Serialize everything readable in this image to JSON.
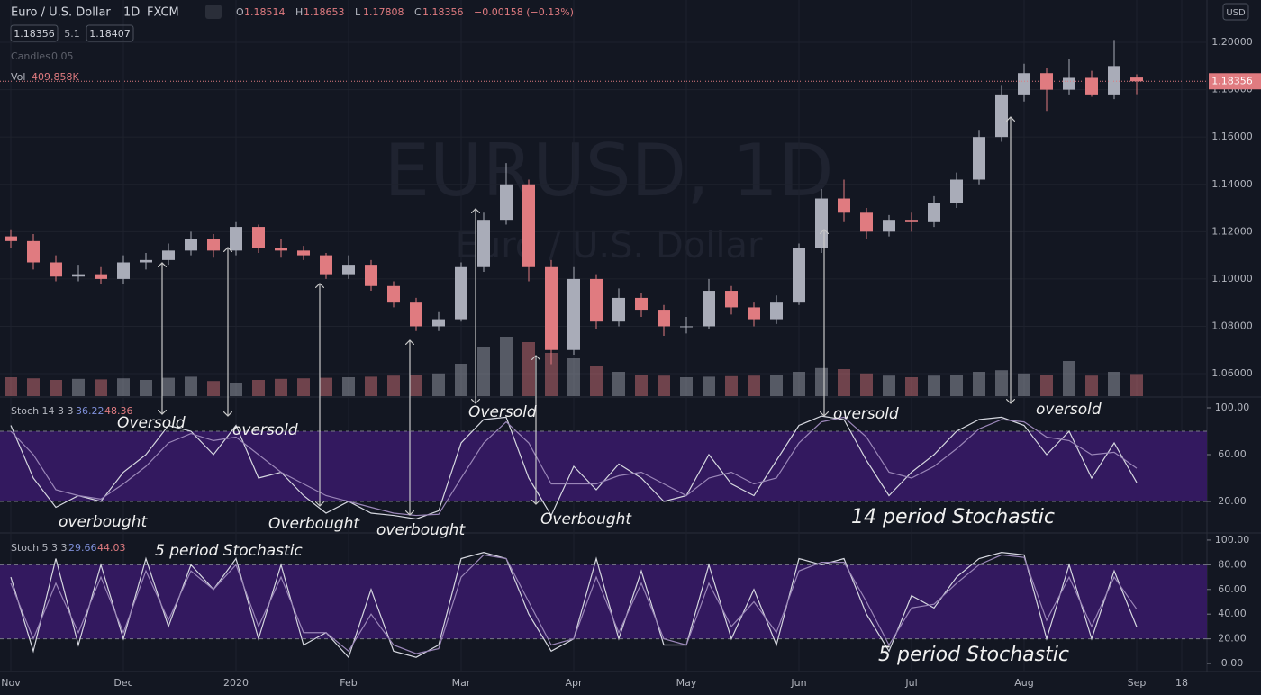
{
  "header": {
    "symbol": "Euro / U.S. Dollar",
    "interval": "1D",
    "exchange": "FXCM",
    "ohlc_letters": [
      "O",
      "H",
      "L",
      "C"
    ],
    "ohlc_values": [
      "1.18514",
      "1.18653",
      "1.17808",
      "1.18356"
    ],
    "change": "−0.00158 (−0.13%)",
    "bid": "1.18356",
    "spread": "5.1",
    "ask": "1.18407",
    "candles_label": "Candles",
    "candles_value": "0.05",
    "vol_label": "Vol",
    "vol_value": "409.858K",
    "currency": "USD"
  },
  "watermark": {
    "title": "EURUSD, 1D",
    "subtitle": "Euro / U.S. Dollar"
  },
  "chart_data": [
    {
      "type": "candlestick",
      "x": [
        "Nov",
        null,
        null,
        null,
        null,
        "Dec",
        null,
        null,
        null,
        null,
        "2020",
        null,
        null,
        null,
        null,
        "Feb",
        null,
        null,
        null,
        null,
        "Mar",
        null,
        null,
        null,
        null,
        "Apr",
        null,
        null,
        null,
        null,
        "May",
        null,
        null,
        null,
        null,
        "Jun",
        null,
        null,
        null,
        null,
        "Jul",
        null,
        null,
        null,
        null,
        "Aug",
        null,
        null,
        null,
        null,
        "Sep",
        null,
        "18"
      ],
      "open": [
        1.118,
        1.116,
        1.107,
        1.101,
        1.102,
        1.1,
        1.107,
        1.108,
        1.112,
        1.117,
        1.112,
        1.122,
        1.113,
        1.112,
        1.11,
        1.102,
        1.106,
        1.097,
        1.09,
        1.08,
        1.083,
        1.105,
        1.125,
        1.14,
        1.105,
        1.07,
        1.1,
        1.082,
        1.092,
        1.087,
        1.08,
        1.08,
        1.095,
        1.088,
        1.083,
        1.09,
        1.113,
        1.134,
        1.128,
        1.12,
        1.125,
        1.124,
        1.132,
        1.142,
        1.16,
        1.178,
        1.187,
        1.18,
        1.185,
        1.178,
        1.18514,
        null,
        null
      ],
      "high": [
        1.121,
        1.119,
        1.11,
        1.106,
        1.105,
        1.11,
        1.111,
        1.115,
        1.12,
        1.119,
        1.124,
        1.123,
        1.117,
        1.114,
        1.111,
        1.11,
        1.108,
        1.099,
        1.092,
        1.086,
        1.107,
        1.128,
        1.149,
        1.142,
        1.108,
        1.105,
        1.102,
        1.096,
        1.094,
        1.089,
        1.084,
        1.1,
        1.097,
        1.09,
        1.093,
        1.115,
        1.138,
        1.142,
        1.13,
        1.127,
        1.128,
        1.135,
        1.145,
        1.163,
        1.182,
        1.191,
        1.189,
        1.193,
        1.188,
        1.201,
        1.18653,
        null,
        null
      ],
      "low": [
        1.113,
        1.104,
        1.099,
        1.099,
        1.098,
        1.098,
        1.104,
        1.106,
        1.11,
        1.109,
        1.11,
        1.111,
        1.109,
        1.108,
        1.1,
        1.1,
        1.095,
        1.088,
        1.078,
        1.078,
        1.082,
        1.103,
        1.123,
        1.099,
        1.064,
        1.068,
        1.079,
        1.08,
        1.084,
        1.076,
        1.077,
        1.079,
        1.085,
        1.08,
        1.081,
        1.089,
        1.111,
        1.124,
        1.117,
        1.118,
        1.12,
        1.122,
        1.13,
        1.14,
        1.158,
        1.175,
        1.171,
        1.178,
        1.177,
        1.176,
        1.17808,
        null,
        null
      ],
      "close": [
        1.116,
        1.107,
        1.101,
        1.102,
        1.1,
        1.107,
        1.108,
        1.112,
        1.117,
        1.112,
        1.122,
        1.113,
        1.112,
        1.11,
        1.102,
        1.106,
        1.097,
        1.09,
        1.08,
        1.083,
        1.105,
        1.125,
        1.14,
        1.105,
        1.07,
        1.1,
        1.082,
        1.092,
        1.087,
        1.08,
        1.08,
        1.095,
        1.088,
        1.083,
        1.09,
        1.113,
        1.134,
        1.128,
        1.12,
        1.125,
        1.124,
        1.132,
        1.142,
        1.16,
        1.178,
        1.187,
        1.18,
        1.185,
        1.178,
        1.19,
        1.18356,
        null,
        null
      ],
      "up_color": "#a9acb8",
      "down_color": "#e07b80",
      "ylim": [
        1.0505,
        1.2179
      ],
      "yticks": [
        {
          "value": 1.06,
          "label": "1.06000"
        },
        {
          "value": 1.08,
          "label": "1.08000"
        },
        {
          "value": 1.1,
          "label": "1.10000"
        },
        {
          "value": 1.12,
          "label": "1.12000"
        },
        {
          "value": 1.14,
          "label": "1.14000"
        },
        {
          "value": 1.16,
          "label": "1.16000"
        },
        {
          "value": 1.18,
          "label": "1.18000"
        },
        {
          "value": 1.2,
          "label": "1.20000"
        }
      ],
      "last_price_label": "1.18356",
      "grid": true
    },
    {
      "type": "bar",
      "values": [
        350,
        330,
        300,
        320,
        310,
        330,
        300,
        340,
        360,
        280,
        250,
        300,
        320,
        330,
        340,
        350,
        360,
        380,
        400,
        420,
        600,
        900,
        1100,
        1000,
        800,
        700,
        550,
        450,
        400,
        380,
        350,
        360,
        370,
        380,
        400,
        450,
        520,
        500,
        420,
        380,
        350,
        380,
        400,
        450,
        480,
        420,
        400,
        650,
        380,
        450,
        409.858,
        null,
        null
      ],
      "ylim": [
        0,
        1500
      ]
    },
    {
      "type": "stochastic",
      "title": "Stoch 14 3 3",
      "legend_values": [
        "36.22",
        "48.36"
      ],
      "series": [
        {
          "color": "#d6d8e0",
          "values": [
            85,
            40,
            15,
            25,
            20,
            45,
            60,
            85,
            80,
            60,
            85,
            40,
            45,
            25,
            10,
            20,
            10,
            8,
            5,
            12,
            70,
            90,
            92,
            40,
            8,
            50,
            30,
            52,
            40,
            20,
            25,
            60,
            35,
            25,
            55,
            85,
            93,
            90,
            55,
            25,
            45,
            60,
            80,
            90,
            92,
            85,
            60,
            80,
            40,
            70,
            36.22,
            null,
            null
          ]
        },
        {
          "color": "#9a86b8",
          "values": [
            80,
            60,
            30,
            25,
            22,
            35,
            50,
            70,
            78,
            72,
            75,
            60,
            45,
            35,
            25,
            20,
            15,
            10,
            8,
            9,
            40,
            70,
            88,
            70,
            35,
            35,
            35,
            42,
            45,
            35,
            25,
            40,
            45,
            35,
            40,
            70,
            88,
            92,
            75,
            45,
            40,
            50,
            65,
            82,
            90,
            88,
            75,
            72,
            60,
            62,
            48.36,
            null,
            null
          ]
        }
      ],
      "ylim": [
        -5.4,
        107.7
      ],
      "yticks": [
        {
          "value": 20,
          "label": "20.00"
        },
        {
          "value": 60,
          "label": "60.00"
        },
        {
          "value": 100,
          "label": "100.00"
        }
      ],
      "band": [
        20,
        80
      ],
      "band_color": "#33195f"
    },
    {
      "type": "stochastic",
      "title": "Stoch 5 3 3",
      "legend_values": [
        "29.66",
        "44.03"
      ],
      "series": [
        {
          "color": "#d6d8e0",
          "values": [
            70,
            10,
            85,
            15,
            80,
            20,
            85,
            30,
            80,
            60,
            85,
            20,
            80,
            15,
            25,
            5,
            60,
            10,
            5,
            15,
            85,
            90,
            85,
            40,
            10,
            20,
            85,
            20,
            75,
            15,
            15,
            80,
            20,
            60,
            15,
            85,
            80,
            85,
            40,
            10,
            55,
            45,
            70,
            85,
            90,
            88,
            20,
            80,
            20,
            75,
            29.66,
            null,
            null
          ]
        },
        {
          "color": "#9a86b8",
          "values": [
            65,
            20,
            65,
            25,
            70,
            25,
            75,
            35,
            75,
            60,
            80,
            30,
            70,
            25,
            25,
            10,
            40,
            15,
            8,
            12,
            70,
            88,
            85,
            50,
            15,
            20,
            70,
            25,
            65,
            20,
            15,
            65,
            30,
            50,
            25,
            75,
            82,
            82,
            50,
            15,
            45,
            48,
            65,
            80,
            88,
            86,
            35,
            70,
            30,
            70,
            44.03,
            null,
            null
          ]
        }
      ],
      "ylim": [
        -5.8,
        103.6
      ],
      "yticks": [
        {
          "value": 0,
          "label": "0.00"
        },
        {
          "value": 20,
          "label": "20.00"
        },
        {
          "value": 40,
          "label": "40.00"
        },
        {
          "value": 60,
          "label": "60.00"
        },
        {
          "value": 80,
          "label": "80.00"
        },
        {
          "value": 100,
          "label": "100.00"
        }
      ],
      "band": [
        20,
        80
      ],
      "band_color": "#33195f"
    }
  ],
  "annotations": [
    "Oversold",
    "oversold",
    "Oversold",
    "oversold",
    "oversold",
    "overbought",
    "Overbought",
    "overbought",
    "Overbought",
    "14 period Stochastic",
    "5 period Stochastic",
    "5 period Stochastic"
  ]
}
